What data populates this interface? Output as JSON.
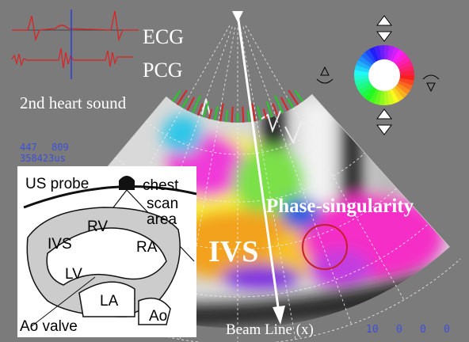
{
  "signals": {
    "ecg_label": "ECG",
    "pcg_label": "PCG",
    "annotation": "2nd heart sound"
  },
  "readout": {
    "line1": [
      "447",
      "809"
    ],
    "line2": "358423us"
  },
  "inset": {
    "labels": [
      "US probe",
      "chest",
      "scan",
      "area",
      "RV",
      "RA",
      "IVS",
      "LV",
      "LA",
      "Ao valve",
      "Ao"
    ]
  },
  "overlay": {
    "phase_singularity": "Phase-singularity",
    "ivs": "IVS",
    "beam_line": "Beam Line (x)"
  },
  "footer_readout": [
    "10",
    "0",
    "0",
    "0"
  ]
}
